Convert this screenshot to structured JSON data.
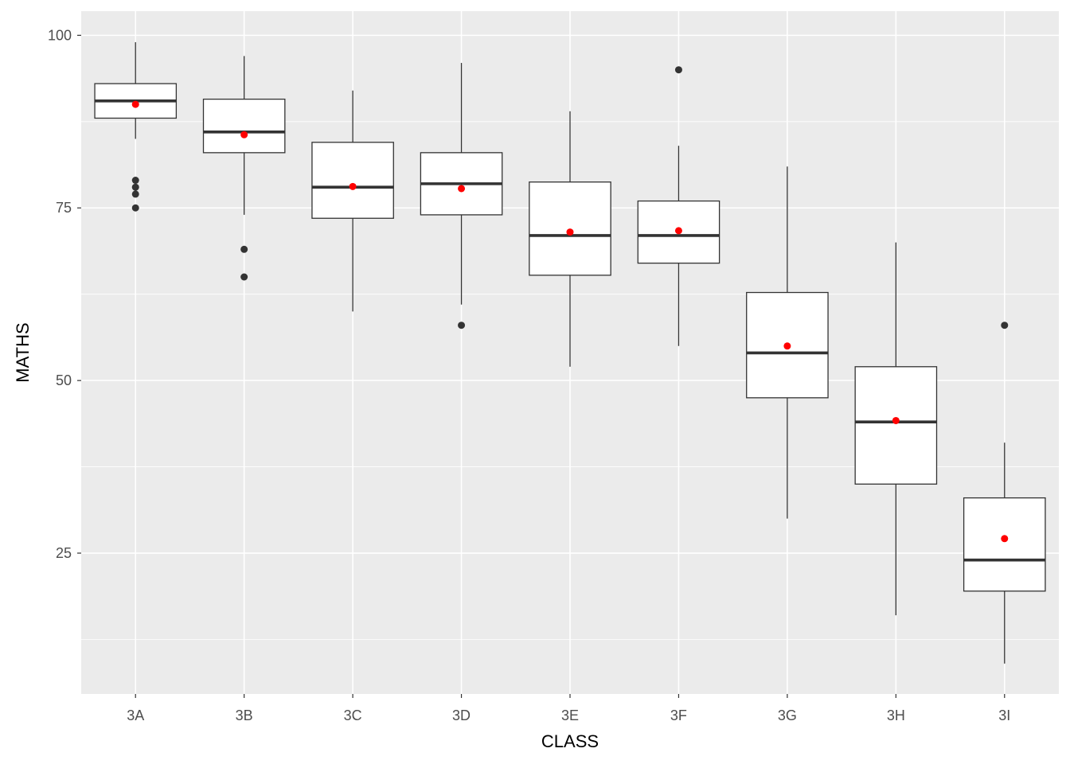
{
  "chart_data": {
    "type": "boxplot",
    "title": "",
    "xlabel": "CLASS",
    "ylabel": "MATHS",
    "ylim": [
      4.6,
      103.5
    ],
    "yticks": [
      25,
      50,
      75,
      100
    ],
    "grid": true,
    "categories": [
      "3A",
      "3B",
      "3C",
      "3D",
      "3E",
      "3F",
      "3G",
      "3H",
      "3I"
    ],
    "boxes": [
      {
        "lower": 85,
        "q1": 88,
        "median": 90.5,
        "q3": 93,
        "upper": 99,
        "mean": 90,
        "outliers": [
          79,
          78,
          77,
          75
        ]
      },
      {
        "lower": 74,
        "q1": 83,
        "median": 86,
        "q3": 90.75,
        "upper": 97,
        "mean": 85.6,
        "outliers": [
          69,
          65
        ]
      },
      {
        "lower": 60,
        "q1": 73.5,
        "median": 78,
        "q3": 84.5,
        "upper": 92,
        "mean": 78.1,
        "outliers": []
      },
      {
        "lower": 61,
        "q1": 74,
        "median": 78.5,
        "q3": 83,
        "upper": 96,
        "mean": 77.8,
        "outliers": [
          58
        ]
      },
      {
        "lower": 52,
        "q1": 65.25,
        "median": 71,
        "q3": 78.75,
        "upper": 89,
        "mean": 71.5,
        "outliers": []
      },
      {
        "lower": 55,
        "q1": 67,
        "median": 71,
        "q3": 76,
        "upper": 84,
        "mean": 71.7,
        "outliers": [
          95
        ]
      },
      {
        "lower": 30,
        "q1": 47.5,
        "median": 54,
        "q3": 62.75,
        "upper": 81,
        "mean": 55,
        "outliers": []
      },
      {
        "lower": 16,
        "q1": 35,
        "median": 44,
        "q3": 52,
        "upper": 70,
        "mean": 44.2,
        "outliers": []
      },
      {
        "lower": 9,
        "q1": 19.5,
        "median": 24,
        "q3": 33,
        "upper": 41,
        "mean": 27.1,
        "outliers": [
          58
        ]
      }
    ],
    "colors": {
      "panel": "#ebebeb",
      "grid": "#ffffff",
      "box": "#333333",
      "mean": "#ff0000"
    }
  }
}
